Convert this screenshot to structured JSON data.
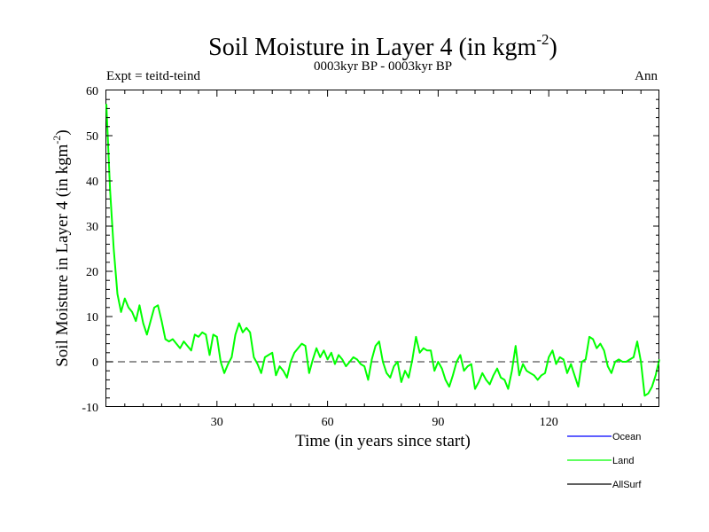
{
  "chart_data": {
    "type": "line",
    "title": "Soil Moisture in Layer 4 (in kgm",
    "title_sup": "-2",
    "title_close": ")",
    "subtitle": "0003kyr BP - 0003kyr BP",
    "left_label": "Expt = teitd-teind",
    "right_label": "Ann",
    "xlabel": "Time (in years since start)",
    "ylabel": "Soil Moisture in Layer 4 (in kgm",
    "ylabel_sup": "-2",
    "ylabel_close": ")",
    "xlim": [
      0,
      150
    ],
    "ylim": [
      -10,
      60
    ],
    "xticks": [
      30,
      60,
      90,
      120
    ],
    "yticks": [
      -10,
      0,
      10,
      20,
      30,
      40,
      50,
      60
    ],
    "reference_line": 0,
    "legend": [
      {
        "name": "Ocean",
        "color": "#0000ff"
      },
      {
        "name": "Land",
        "color": "#00ff00"
      },
      {
        "name": "AllSurf",
        "color": "#000000"
      }
    ],
    "series": [
      {
        "name": "Land",
        "color": "#00ff00",
        "values": [
          57,
          38,
          25,
          15,
          11,
          14,
          12,
          11,
          9,
          12.5,
          8.5,
          6,
          9,
          12,
          12.5,
          9,
          5,
          4.5,
          5,
          4,
          3,
          4.5,
          3.5,
          2.5,
          6,
          5.5,
          6.5,
          6,
          1.5,
          6,
          5.5,
          0,
          -2.5,
          -0.5,
          1,
          6,
          8.5,
          6.5,
          7.5,
          6.5,
          1,
          -0.5,
          -2.5,
          1,
          1.5,
          2,
          -3,
          -1,
          -2,
          -3.5,
          0,
          2,
          3,
          4,
          3.5,
          -2.5,
          0.5,
          3,
          1,
          2.5,
          0.5,
          2,
          -0.5,
          1.5,
          0.5,
          -1,
          0,
          1,
          0.5,
          -0.5,
          -1,
          -4,
          0.5,
          3.5,
          4.5,
          0,
          -2.5,
          -3.5,
          -1,
          0,
          -4.5,
          -2,
          -3.5,
          0.5,
          5.5,
          2,
          3,
          2.5,
          2.5,
          -2,
          0,
          -1.5,
          -4,
          -5.5,
          -3,
          0,
          1.5,
          -2,
          -1,
          -0.5,
          -6,
          -4.5,
          -2.5,
          -4,
          -5,
          -3,
          -1.5,
          -3.5,
          -4,
          -6,
          -2,
          3.5,
          -3,
          -0.5,
          -2,
          -2.5,
          -3,
          -4,
          -3,
          -2.5,
          1,
          2.5,
          -0.5,
          1,
          0.5,
          -2.5,
          -0.5,
          -3,
          -5.5,
          0,
          0.5,
          5.5,
          5,
          3,
          4,
          2.5,
          -1,
          -2.5,
          0,
          0.5,
          0,
          0,
          0.5,
          1,
          4.5,
          0,
          -7.5,
          -7,
          -5.5,
          -3,
          0.5
        ]
      }
    ]
  }
}
